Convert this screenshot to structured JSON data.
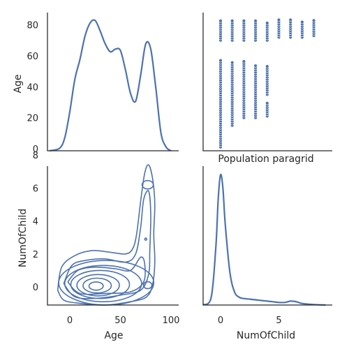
{
  "figure": {
    "title": "Population paragrid",
    "background": "#ffffff",
    "accent": "#4c72b0"
  },
  "chart_data": [
    {
      "type": "line",
      "panel": "top-left",
      "subtype": "kde",
      "ylabel": "Age",
      "x": [
        -20,
        -10,
        -5,
        0,
        5,
        10,
        15,
        20,
        25,
        30,
        35,
        40,
        45,
        50,
        55,
        60,
        65,
        70,
        75,
        80,
        85,
        90,
        95,
        100
      ],
      "values": [
        0.0,
        0.02,
        0.1,
        0.3,
        0.55,
        0.7,
        0.88,
        0.98,
        1.0,
        0.92,
        0.82,
        0.76,
        0.78,
        0.77,
        0.62,
        0.44,
        0.38,
        0.58,
        0.82,
        0.78,
        0.48,
        0.14,
        0.03,
        0.0
      ],
      "ylim": [
        0,
        1.05
      ],
      "yticks": [
        "0",
        "20",
        "40",
        "60",
        "80"
      ],
      "grid": false
    },
    {
      "type": "scatter",
      "panel": "top-right",
      "ylabel": "",
      "xlim": [
        -1.5,
        9.5
      ],
      "ylim": [
        -3,
        89
      ],
      "columns": [
        {
          "x": 0,
          "ranges": [
            [
              1,
              58
            ],
            [
              70,
              84
            ]
          ]
        },
        {
          "x": 1,
          "ranges": [
            [
              15,
              56
            ],
            [
              70,
              84
            ]
          ]
        },
        {
          "x": 2,
          "ranges": [
            [
              20,
              57
            ],
            [
              70,
              84
            ]
          ]
        },
        {
          "x": 3,
          "ranges": [
            [
              20,
              54
            ],
            [
              70,
              84
            ]
          ]
        },
        {
          "x": 4,
          "ranges": [
            [
              21,
              30
            ],
            [
              35,
              54
            ],
            [
              70,
              82
            ]
          ]
        },
        {
          "x": 5,
          "ranges": [
            [
              72,
              84
            ]
          ]
        },
        {
          "x": 6,
          "ranges": [
            [
              72,
              84
            ]
          ]
        },
        {
          "x": 7,
          "ranges": [
            [
              72,
              83
            ]
          ]
        },
        {
          "x": 8,
          "ranges": [
            [
              73,
              84
            ]
          ]
        }
      ]
    },
    {
      "type": "line",
      "panel": "bottom-left",
      "subtype": "kde-contour",
      "xlabel": "Age",
      "ylabel": "NumOfChild",
      "xlim": [
        -24,
        104
      ],
      "ylim": [
        -1.3,
        9.6
      ],
      "xticks": [
        "0",
        "50",
        "100"
      ],
      "yticks": [
        "0",
        "2",
        "4",
        "6",
        "8"
      ],
      "x_tick_values": [
        0,
        50,
        100
      ],
      "y_tick_values": [
        0,
        2,
        4,
        6,
        8
      ]
    },
    {
      "type": "line",
      "panel": "bottom-right",
      "subtype": "kde",
      "xlabel": "NumOfChild",
      "x": [
        -1.5,
        -0.8,
        -0.4,
        -0.2,
        0,
        0.2,
        0.4,
        0.8,
        1.2,
        1.6,
        2,
        2.5,
        3,
        3.5,
        4,
        4.5,
        5,
        5.5,
        6,
        6.5,
        7,
        8,
        9
      ],
      "values": [
        0.0,
        0.06,
        0.45,
        0.82,
        1.0,
        0.9,
        0.62,
        0.25,
        0.1,
        0.06,
        0.05,
        0.045,
        0.04,
        0.035,
        0.03,
        0.025,
        0.02,
        0.02,
        0.03,
        0.025,
        0.012,
        0.004,
        0.0
      ],
      "xlim": [
        -1.8,
        9.8
      ],
      "ylim": [
        0,
        1.05
      ],
      "xticks": [
        "0",
        "5"
      ],
      "x_tick_values": [
        0,
        5
      ]
    }
  ]
}
